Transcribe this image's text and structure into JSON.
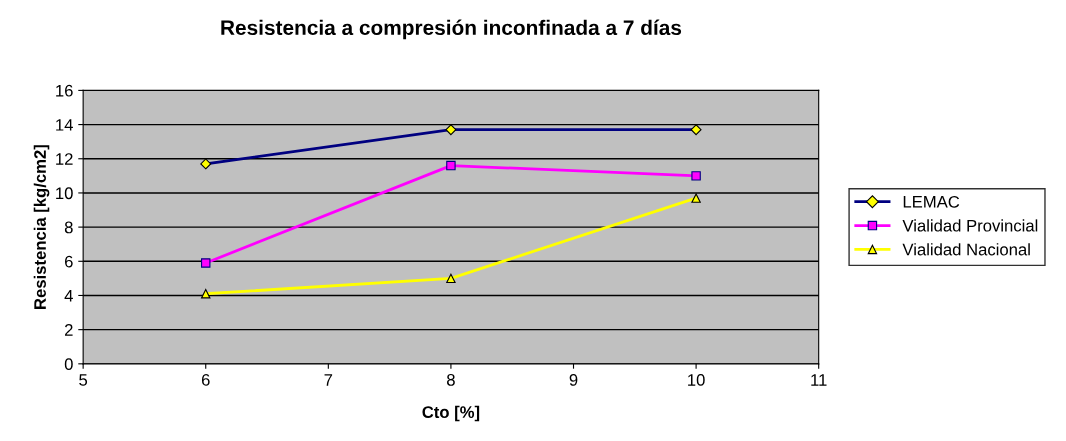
{
  "chart_data": {
    "type": "line",
    "title": "Resistencia a compresión inconfinada a 7 días",
    "xlabel": "Cto [%]",
    "ylabel": "Resistencia [kg/cm2]",
    "x": [
      6,
      8,
      10
    ],
    "series": [
      {
        "name": "LEMAC",
        "color": "#000080",
        "marker": "diamond",
        "values": [
          11.7,
          13.7,
          13.7
        ]
      },
      {
        "name": "Vialidad Provincial",
        "color": "#ff00ff",
        "marker": "square",
        "values": [
          5.9,
          11.6,
          11.0
        ]
      },
      {
        "name": "Vialidad Nacional",
        "color": "#ffff00",
        "marker": "triangle",
        "values": [
          4.1,
          5.0,
          9.7
        ]
      }
    ],
    "xlim": [
      5,
      11
    ],
    "xticks": [
      5,
      6,
      7,
      8,
      9,
      10,
      11
    ],
    "ylim": [
      0,
      16
    ],
    "yticks": [
      0,
      2,
      4,
      6,
      8,
      10,
      12,
      14,
      16
    ],
    "grid": "y",
    "legend": "right",
    "line_style": "solid"
  }
}
